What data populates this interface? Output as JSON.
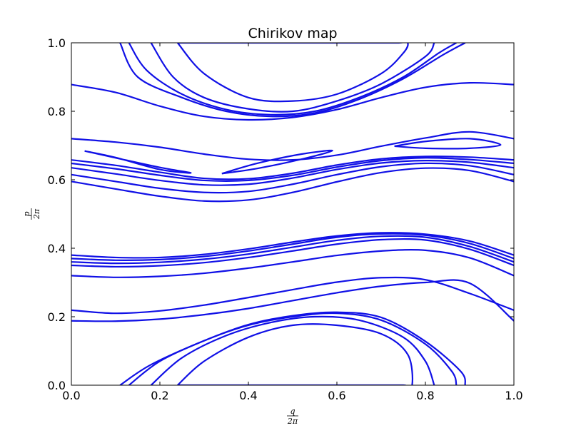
{
  "chart_data": {
    "type": "line",
    "title": "Chirikov map",
    "xlabel": {
      "numerator": "q",
      "denominator": "2π"
    },
    "ylabel": {
      "numerator": "p",
      "denominator": "2π"
    },
    "xlim": [
      0.0,
      1.0
    ],
    "ylim": [
      0.0,
      1.0
    ],
    "xticks": [
      "0.0",
      "0.2",
      "0.4",
      "0.6",
      "0.8",
      "1.0"
    ],
    "yticks": [
      "0.0",
      "0.2",
      "0.4",
      "0.6",
      "0.8",
      "1.0"
    ],
    "grid": false,
    "legend": "none",
    "color": "#1010e6",
    "series": [
      {
        "x": [
          0.0,
          0.1,
          0.2,
          0.3,
          0.4,
          0.5,
          0.6,
          0.7,
          0.8,
          0.9,
          1.0
        ],
        "y": [
          0.188,
          0.187,
          0.193,
          0.206,
          0.224,
          0.247,
          0.27,
          0.289,
          0.3,
          0.298,
          0.188
        ]
      },
      {
        "x": [
          0.0,
          0.1,
          0.2,
          0.3,
          0.4,
          0.5,
          0.6,
          0.7,
          0.8,
          0.9,
          1.0
        ],
        "y": [
          0.219,
          0.21,
          0.217,
          0.234,
          0.256,
          0.279,
          0.301,
          0.314,
          0.308,
          0.268,
          0.219
        ]
      },
      {
        "x": [
          0.0,
          0.1,
          0.2,
          0.3,
          0.4,
          0.5,
          0.6,
          0.7,
          0.8,
          0.9,
          1.0
        ],
        "y": [
          0.32,
          0.315,
          0.318,
          0.327,
          0.342,
          0.36,
          0.379,
          0.392,
          0.394,
          0.372,
          0.32
        ]
      },
      {
        "x": [
          0.0,
          0.1,
          0.2,
          0.3,
          0.4,
          0.5,
          0.6,
          0.7,
          0.8,
          0.9,
          1.0
        ],
        "y": [
          0.35,
          0.346,
          0.349,
          0.358,
          0.373,
          0.392,
          0.412,
          0.425,
          0.424,
          0.397,
          0.35
        ]
      },
      {
        "x": [
          0.0,
          0.1,
          0.2,
          0.3,
          0.4,
          0.5,
          0.6,
          0.7,
          0.8,
          0.9,
          1.0
        ],
        "y": [
          0.36,
          0.356,
          0.359,
          0.368,
          0.383,
          0.403,
          0.423,
          0.435,
          0.432,
          0.405,
          0.36
        ]
      },
      {
        "x": [
          0.0,
          0.1,
          0.2,
          0.3,
          0.4,
          0.5,
          0.6,
          0.7,
          0.8,
          0.9,
          1.0
        ],
        "y": [
          0.37,
          0.365,
          0.367,
          0.376,
          0.392,
          0.412,
          0.432,
          0.442,
          0.438,
          0.414,
          0.37
        ]
      },
      {
        "x": [
          0.0,
          0.1,
          0.2,
          0.3,
          0.4,
          0.5,
          0.6,
          0.7,
          0.8,
          0.9,
          1.0
        ],
        "y": [
          0.38,
          0.373,
          0.373,
          0.382,
          0.398,
          0.418,
          0.436,
          0.445,
          0.441,
          0.421,
          0.38
        ]
      },
      {
        "x": [
          0.0,
          0.1,
          0.2,
          0.3,
          0.4,
          0.5,
          0.6,
          0.7,
          0.8,
          0.9,
          1.0
        ],
        "y": [
          0.595,
          0.573,
          0.552,
          0.538,
          0.541,
          0.563,
          0.594,
          0.621,
          0.634,
          0.627,
          0.595
        ]
      },
      {
        "x": [
          0.0,
          0.1,
          0.2,
          0.3,
          0.4,
          0.5,
          0.6,
          0.7,
          0.8,
          0.9,
          1.0
        ],
        "y": [
          0.615,
          0.595,
          0.575,
          0.563,
          0.566,
          0.587,
          0.615,
          0.638,
          0.648,
          0.641,
          0.615
        ]
      },
      {
        "x": [
          0.0,
          0.1,
          0.2,
          0.3,
          0.4,
          0.5,
          0.6,
          0.7,
          0.8,
          0.9,
          1.0
        ],
        "y": [
          0.635,
          0.617,
          0.598,
          0.585,
          0.587,
          0.605,
          0.63,
          0.649,
          0.656,
          0.651,
          0.635
        ]
      },
      {
        "x": [
          0.0,
          0.1,
          0.2,
          0.3,
          0.4,
          0.5,
          0.6,
          0.7,
          0.8,
          0.9,
          1.0
        ],
        "y": [
          0.648,
          0.632,
          0.613,
          0.598,
          0.598,
          0.613,
          0.637,
          0.656,
          0.664,
          0.659,
          0.648
        ]
      },
      {
        "x": [
          0.0,
          0.1,
          0.2,
          0.3,
          0.4,
          0.5,
          0.6,
          0.7,
          0.8,
          0.9,
          1.0
        ],
        "y": [
          0.658,
          0.642,
          0.622,
          0.604,
          0.603,
          0.619,
          0.643,
          0.661,
          0.668,
          0.666,
          0.658
        ]
      },
      {
        "x": [
          0.0,
          0.1,
          0.2,
          0.3,
          0.4,
          0.5,
          0.6,
          0.7,
          0.8,
          0.9,
          1.0
        ],
        "y": [
          0.72,
          0.71,
          0.695,
          0.675,
          0.66,
          0.658,
          0.672,
          0.698,
          0.722,
          0.74,
          0.72
        ]
      },
      {
        "x": [
          0.0,
          0.1,
          0.2,
          0.3,
          0.4,
          0.5,
          0.6,
          0.7,
          0.8,
          0.9,
          1.0
        ],
        "y": [
          0.878,
          0.855,
          0.815,
          0.785,
          0.775,
          0.782,
          0.805,
          0.84,
          0.87,
          0.883,
          0.878
        ]
      },
      {
        "x": [
          0.03,
          0.1,
          0.2,
          0.27,
          0.2,
          0.1,
          0.03
        ],
        "y": [
          0.684,
          0.665,
          0.63,
          0.62,
          0.636,
          0.664,
          0.684
        ]
      },
      {
        "x": [
          0.34,
          0.42,
          0.52,
          0.59,
          0.52,
          0.42,
          0.34
        ],
        "y": [
          0.618,
          0.633,
          0.66,
          0.685,
          0.675,
          0.648,
          0.618
        ]
      },
      {
        "x": [
          0.73,
          0.8,
          0.9,
          0.97,
          0.9,
          0.8,
          0.73
        ],
        "y": [
          0.698,
          0.712,
          0.72,
          0.702,
          0.692,
          0.692,
          0.698
        ]
      },
      {
        "x": [
          0.24,
          0.3,
          0.4,
          0.5,
          0.6,
          0.7,
          0.75,
          0.76,
          0.74,
          0.7,
          0.6,
          0.5,
          0.4,
          0.3,
          0.26,
          0.24
        ],
        "y": [
          1.0,
          0.91,
          0.84,
          0.83,
          0.85,
          0.91,
          0.97,
          1.0,
          1.0,
          1.0,
          1.0,
          1.0,
          1.0,
          1.0,
          1.0,
          1.0
        ]
      },
      {
        "x": [
          0.18,
          0.23,
          0.3,
          0.4,
          0.5,
          0.6,
          0.7,
          0.8,
          0.82
        ],
        "y": [
          1.0,
          0.9,
          0.84,
          0.807,
          0.8,
          0.83,
          0.88,
          0.96,
          1.0
        ]
      },
      {
        "x": [
          0.13,
          0.17,
          0.25,
          0.35,
          0.45,
          0.55,
          0.65,
          0.75,
          0.83,
          0.87
        ],
        "y": [
          1.0,
          0.92,
          0.85,
          0.805,
          0.79,
          0.8,
          0.84,
          0.9,
          0.97,
          1.0
        ]
      },
      {
        "x": [
          0.11,
          0.15,
          0.25,
          0.35,
          0.45,
          0.55,
          0.65,
          0.75,
          0.84,
          0.89
        ],
        "y": [
          1.0,
          0.9,
          0.84,
          0.8,
          0.785,
          0.795,
          0.835,
          0.895,
          0.965,
          1.0
        ]
      },
      {
        "x": [
          0.24,
          0.3,
          0.4,
          0.5,
          0.6,
          0.7,
          0.76,
          0.77,
          0.75,
          0.68,
          0.6,
          0.5,
          0.4,
          0.3,
          0.24
        ],
        "y": [
          0.0,
          0.07,
          0.14,
          0.175,
          0.175,
          0.15,
          0.09,
          0.0,
          0.0,
          0.0,
          0.0,
          0.0,
          0.0,
          0.0,
          0.0
        ]
      },
      {
        "x": [
          0.18,
          0.25,
          0.35,
          0.45,
          0.55,
          0.65,
          0.75,
          0.8,
          0.82
        ],
        "y": [
          0.0,
          0.08,
          0.145,
          0.183,
          0.2,
          0.19,
          0.14,
          0.07,
          0.0
        ]
      },
      {
        "x": [
          0.13,
          0.2,
          0.3,
          0.4,
          0.5,
          0.6,
          0.7,
          0.8,
          0.86,
          0.87
        ],
        "y": [
          0.0,
          0.07,
          0.13,
          0.175,
          0.2,
          0.21,
          0.19,
          0.12,
          0.04,
          0.0
        ]
      },
      {
        "x": [
          0.11,
          0.18,
          0.3,
          0.4,
          0.5,
          0.6,
          0.7,
          0.8,
          0.88,
          0.89
        ],
        "y": [
          0.0,
          0.06,
          0.13,
          0.177,
          0.203,
          0.213,
          0.198,
          0.128,
          0.04,
          0.0
        ]
      }
    ]
  }
}
